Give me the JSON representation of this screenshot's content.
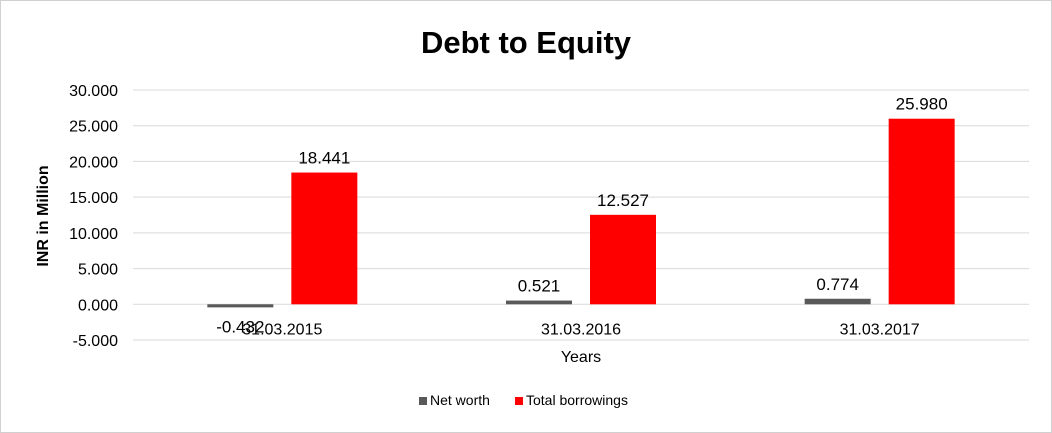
{
  "chart_data": {
    "type": "bar",
    "title": "Debt to Equity",
    "xlabel": "Years",
    "ylabel": "INR in Million",
    "categories": [
      "31.03.2015",
      "31.03.2016",
      "31.03.2017"
    ],
    "series": [
      {
        "name": "Net worth",
        "values": [
          -0.432,
          0.521,
          0.774
        ],
        "labels": [
          "-0.432",
          "0.521",
          "0.774"
        ],
        "color": "#595959"
      },
      {
        "name": "Total borrowings",
        "values": [
          18.441,
          12.527,
          25.98
        ],
        "labels": [
          "18.441",
          "12.527",
          "25.980"
        ],
        "color": "#ff0000"
      }
    ],
    "ylim": [
      -5,
      30
    ],
    "yticks": [
      -5,
      0,
      5,
      10,
      15,
      20,
      25,
      30
    ],
    "ytick_labels": [
      "-5.000",
      "0.000",
      "5.000",
      "10.000",
      "15.000",
      "20.000",
      "25.000",
      "30.000"
    ],
    "grid": true,
    "legend": "bottom"
  }
}
